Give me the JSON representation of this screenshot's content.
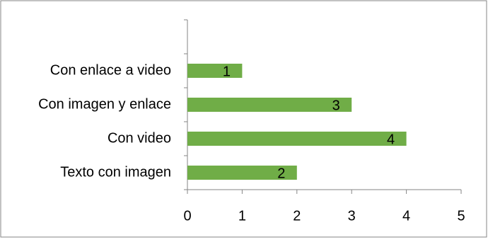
{
  "chart_data": {
    "type": "bar",
    "orientation": "horizontal",
    "categories": [
      null,
      "Con enlace a video",
      "Con imagen y enlace",
      "Con video",
      "Texto con imagen"
    ],
    "values": [
      null,
      1,
      3,
      4,
      2
    ],
    "color": "#70ad47",
    "xlim": [
      0,
      5
    ],
    "xticks": [
      0,
      1,
      2,
      3,
      4,
      5
    ],
    "grid": false
  }
}
